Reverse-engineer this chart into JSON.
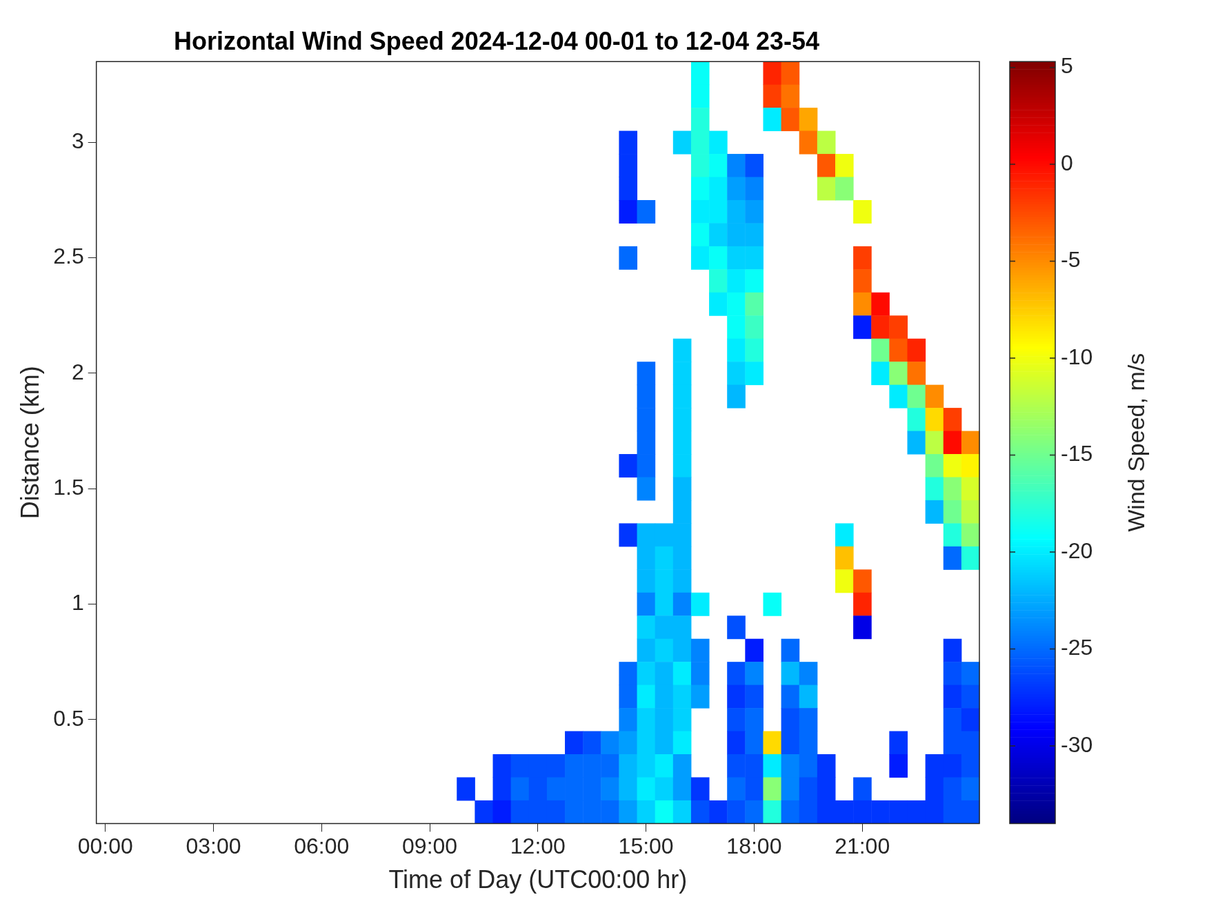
{
  "chart_data": {
    "type": "heatmap",
    "title": "Horizontal Wind Speed 2024-12-04 00-01 to 12-04 23-54",
    "xlabel": "Time of Day (UTC00:00 hr)",
    "ylabel": "Distance (km)",
    "clabel": "Wind Speed, m/s",
    "categories": [
      "00:00",
      null,
      null,
      null,
      null,
      null,
      "03:00",
      null,
      null,
      null,
      null,
      null,
      "06:00",
      null,
      null,
      null,
      null,
      null,
      "09:00",
      null,
      null,
      null,
      null,
      null,
      "12:00",
      null,
      null,
      null,
      null,
      null,
      "15:00",
      null,
      null,
      null,
      null,
      null,
      "18:00",
      null,
      null,
      null,
      null,
      null,
      "21:00",
      null,
      null,
      null,
      null,
      null,
      null
    ],
    "y_categories": [
      null,
      null,
      null,
      "3",
      null,
      null,
      null,
      null,
      "2.5",
      null,
      null,
      null,
      null,
      "2",
      null,
      null,
      null,
      null,
      "1.5",
      null,
      null,
      null,
      null,
      "1",
      null,
      null,
      null,
      null,
      "0.5",
      null,
      null,
      null,
      null
    ],
    "clim": [
      -34,
      5.3
    ],
    "cticks": [
      -30,
      -25,
      -20,
      -15,
      -10,
      -5,
      0,
      5
    ],
    "cells": [
      [
        null,
        null,
        null,
        null,
        null,
        null,
        null,
        null,
        null,
        null,
        null,
        null,
        null,
        null,
        null,
        null,
        null,
        null,
        null,
        null,
        null,
        null,
        null,
        null,
        null,
        null,
        null,
        null,
        null,
        null,
        null,
        null,
        null,
        -19,
        null,
        null,
        null,
        -1,
        -3,
        null,
        null,
        null,
        null,
        null,
        null,
        null,
        null,
        null,
        null
      ],
      [
        null,
        null,
        null,
        null,
        null,
        null,
        null,
        null,
        null,
        null,
        null,
        null,
        null,
        null,
        null,
        null,
        null,
        null,
        null,
        null,
        null,
        null,
        null,
        null,
        null,
        null,
        null,
        null,
        null,
        null,
        null,
        null,
        null,
        -19,
        null,
        null,
        null,
        -2,
        -4,
        null,
        null,
        null,
        null,
        null,
        null,
        null,
        null,
        null,
        null
      ],
      [
        null,
        null,
        null,
        null,
        null,
        null,
        null,
        null,
        null,
        null,
        null,
        null,
        null,
        null,
        null,
        null,
        null,
        null,
        null,
        null,
        null,
        null,
        null,
        null,
        null,
        null,
        null,
        null,
        null,
        null,
        null,
        null,
        null,
        -18,
        null,
        null,
        null,
        -20,
        -3,
        -6,
        null,
        null,
        null,
        null,
        null,
        null,
        null,
        null,
        null
      ],
      [
        null,
        null,
        null,
        null,
        null,
        null,
        null,
        null,
        null,
        null,
        null,
        null,
        null,
        null,
        null,
        null,
        null,
        null,
        null,
        null,
        null,
        null,
        null,
        null,
        null,
        null,
        null,
        null,
        null,
        -27,
        null,
        null,
        -21,
        -18,
        -20,
        null,
        null,
        null,
        null,
        -4,
        -12,
        null,
        null,
        null,
        null,
        null,
        null,
        null,
        null
      ],
      [
        null,
        null,
        null,
        null,
        null,
        null,
        null,
        null,
        null,
        null,
        null,
        null,
        null,
        null,
        null,
        null,
        null,
        null,
        null,
        null,
        null,
        null,
        null,
        null,
        null,
        null,
        null,
        null,
        null,
        -27,
        null,
        null,
        null,
        -18,
        -19,
        -24,
        -26,
        null,
        null,
        null,
        -3,
        -10,
        null,
        null,
        null,
        null,
        null,
        null,
        null
      ],
      [
        null,
        null,
        null,
        null,
        null,
        null,
        null,
        null,
        null,
        null,
        null,
        null,
        null,
        null,
        null,
        null,
        null,
        null,
        null,
        null,
        null,
        null,
        null,
        null,
        null,
        null,
        null,
        null,
        null,
        -27,
        null,
        null,
        null,
        -19,
        -20,
        -23,
        -24,
        null,
        null,
        null,
        -12,
        -14,
        null,
        null,
        null,
        null,
        null,
        null,
        null
      ],
      [
        null,
        null,
        null,
        null,
        null,
        null,
        null,
        null,
        null,
        null,
        null,
        null,
        null,
        null,
        null,
        null,
        null,
        null,
        null,
        null,
        null,
        null,
        null,
        null,
        null,
        null,
        null,
        null,
        null,
        -28,
        -25,
        null,
        null,
        -20,
        -20,
        -22,
        -23,
        null,
        null,
        null,
        null,
        null,
        -10,
        null,
        null,
        null,
        null,
        null,
        null
      ],
      [
        null,
        null,
        null,
        null,
        null,
        null,
        null,
        null,
        null,
        null,
        null,
        null,
        null,
        null,
        null,
        null,
        null,
        null,
        null,
        null,
        null,
        null,
        null,
        null,
        null,
        null,
        null,
        null,
        null,
        null,
        null,
        null,
        null,
        -19,
        -21,
        -22,
        -22,
        null,
        null,
        null,
        null,
        null,
        null,
        null,
        null,
        null,
        null,
        null,
        null
      ],
      [
        null,
        null,
        null,
        null,
        null,
        null,
        null,
        null,
        null,
        null,
        null,
        null,
        null,
        null,
        null,
        null,
        null,
        null,
        null,
        null,
        null,
        null,
        null,
        null,
        null,
        null,
        null,
        null,
        null,
        -25,
        null,
        null,
        null,
        -20,
        -19,
        -21,
        -21,
        null,
        null,
        null,
        null,
        null,
        -2,
        null,
        null,
        null,
        null,
        null,
        null
      ],
      [
        null,
        null,
        null,
        null,
        null,
        null,
        null,
        null,
        null,
        null,
        null,
        null,
        null,
        null,
        null,
        null,
        null,
        null,
        null,
        null,
        null,
        null,
        null,
        null,
        null,
        null,
        null,
        null,
        null,
        null,
        null,
        null,
        null,
        null,
        -18,
        -20,
        -19,
        null,
        null,
        null,
        null,
        null,
        -3,
        null,
        null,
        null,
        null,
        null,
        null
      ],
      [
        null,
        null,
        null,
        null,
        null,
        null,
        null,
        null,
        null,
        null,
        null,
        null,
        null,
        null,
        null,
        null,
        null,
        null,
        null,
        null,
        null,
        null,
        null,
        null,
        null,
        null,
        null,
        null,
        null,
        null,
        null,
        null,
        null,
        null,
        -20,
        -19,
        -16,
        null,
        null,
        null,
        null,
        null,
        -5,
        0,
        null,
        null,
        null,
        null,
        null
      ],
      [
        null,
        null,
        null,
        null,
        null,
        null,
        null,
        null,
        null,
        null,
        null,
        null,
        null,
        null,
        null,
        null,
        null,
        null,
        null,
        null,
        null,
        null,
        null,
        null,
        null,
        null,
        null,
        null,
        null,
        null,
        null,
        null,
        null,
        null,
        null,
        -19,
        -17,
        null,
        null,
        null,
        null,
        null,
        -28,
        -1,
        -2,
        null,
        null,
        null,
        null
      ],
      [
        null,
        null,
        null,
        null,
        null,
        null,
        null,
        null,
        null,
        null,
        null,
        null,
        null,
        null,
        null,
        null,
        null,
        null,
        null,
        null,
        null,
        null,
        null,
        null,
        null,
        null,
        null,
        null,
        null,
        null,
        null,
        null,
        -21,
        null,
        null,
        -20,
        -18,
        null,
        null,
        null,
        null,
        null,
        null,
        -15,
        -3,
        -1,
        null,
        null,
        null
      ],
      [
        null,
        null,
        null,
        null,
        null,
        null,
        null,
        null,
        null,
        null,
        null,
        null,
        null,
        null,
        null,
        null,
        null,
        null,
        null,
        null,
        null,
        null,
        null,
        null,
        null,
        null,
        null,
        null,
        null,
        null,
        -25,
        null,
        -21,
        null,
        null,
        -21,
        -20,
        null,
        null,
        null,
        null,
        null,
        null,
        -20,
        -14,
        -4,
        null,
        null,
        null
      ],
      [
        null,
        null,
        null,
        null,
        null,
        null,
        null,
        null,
        null,
        null,
        null,
        null,
        null,
        null,
        null,
        null,
        null,
        null,
        null,
        null,
        null,
        null,
        null,
        null,
        null,
        null,
        null,
        null,
        null,
        null,
        -25,
        null,
        -21,
        null,
        null,
        -22,
        null,
        null,
        null,
        null,
        null,
        null,
        null,
        null,
        -20,
        -15,
        -5,
        null,
        null
      ],
      [
        null,
        null,
        null,
        null,
        null,
        null,
        null,
        null,
        null,
        null,
        null,
        null,
        null,
        null,
        null,
        null,
        null,
        null,
        null,
        null,
        null,
        null,
        null,
        null,
        null,
        null,
        null,
        null,
        null,
        null,
        -25,
        null,
        -21,
        null,
        null,
        null,
        null,
        null,
        null,
        null,
        null,
        null,
        null,
        null,
        null,
        -18,
        -8,
        -2,
        null
      ],
      [
        null,
        null,
        null,
        null,
        null,
        null,
        null,
        null,
        null,
        null,
        null,
        null,
        null,
        null,
        null,
        null,
        null,
        null,
        null,
        null,
        null,
        null,
        null,
        null,
        null,
        null,
        null,
        null,
        null,
        null,
        -25,
        null,
        -21,
        null,
        null,
        null,
        null,
        null,
        null,
        null,
        null,
        null,
        null,
        null,
        null,
        -22,
        -12,
        0,
        -5
      ],
      [
        null,
        null,
        null,
        null,
        null,
        null,
        null,
        null,
        null,
        null,
        null,
        null,
        null,
        null,
        null,
        null,
        null,
        null,
        null,
        null,
        null,
        null,
        null,
        null,
        null,
        null,
        null,
        null,
        null,
        -27,
        -25,
        null,
        -21,
        null,
        null,
        null,
        null,
        null,
        null,
        null,
        null,
        null,
        null,
        null,
        null,
        null,
        -15,
        -10,
        -9
      ],
      [
        null,
        null,
        null,
        null,
        null,
        null,
        null,
        null,
        null,
        null,
        null,
        null,
        null,
        null,
        null,
        null,
        null,
        null,
        null,
        null,
        null,
        null,
        null,
        null,
        null,
        null,
        null,
        null,
        null,
        null,
        -24,
        null,
        -22,
        null,
        null,
        null,
        null,
        null,
        null,
        null,
        null,
        null,
        null,
        null,
        null,
        null,
        -18,
        -14,
        -11
      ],
      [
        null,
        null,
        null,
        null,
        null,
        null,
        null,
        null,
        null,
        null,
        null,
        null,
        null,
        null,
        null,
        null,
        null,
        null,
        null,
        null,
        null,
        null,
        null,
        null,
        null,
        null,
        null,
        null,
        null,
        null,
        null,
        null,
        -22,
        null,
        null,
        null,
        null,
        null,
        null,
        null,
        null,
        null,
        null,
        null,
        null,
        null,
        -22,
        -15,
        -12
      ],
      [
        null,
        null,
        null,
        null,
        null,
        null,
        null,
        null,
        null,
        null,
        null,
        null,
        null,
        null,
        null,
        null,
        null,
        null,
        null,
        null,
        null,
        null,
        null,
        null,
        null,
        null,
        null,
        null,
        null,
        -27,
        -22,
        -22,
        -22,
        null,
        null,
        null,
        null,
        null,
        null,
        null,
        null,
        -20,
        null,
        null,
        null,
        null,
        null,
        -18,
        -14
      ],
      [
        null,
        null,
        null,
        null,
        null,
        null,
        null,
        null,
        null,
        null,
        null,
        null,
        null,
        null,
        null,
        null,
        null,
        null,
        null,
        null,
        null,
        null,
        null,
        null,
        null,
        null,
        null,
        null,
        null,
        null,
        -22,
        -21,
        -22,
        null,
        null,
        null,
        null,
        null,
        null,
        null,
        null,
        -7,
        null,
        null,
        null,
        null,
        null,
        -25,
        -18
      ],
      [
        null,
        null,
        null,
        null,
        null,
        null,
        null,
        null,
        null,
        null,
        null,
        null,
        null,
        null,
        null,
        null,
        null,
        null,
        null,
        null,
        null,
        null,
        null,
        null,
        null,
        null,
        null,
        null,
        null,
        null,
        -22,
        -21,
        -22,
        null,
        null,
        null,
        null,
        null,
        null,
        null,
        null,
        -10,
        -3,
        null,
        null,
        null,
        null,
        null,
        null
      ],
      [
        null,
        null,
        null,
        null,
        null,
        null,
        null,
        null,
        null,
        null,
        null,
        null,
        null,
        null,
        null,
        null,
        null,
        null,
        null,
        null,
        null,
        null,
        null,
        null,
        null,
        null,
        null,
        null,
        null,
        null,
        -24,
        -21,
        -24,
        -20,
        null,
        null,
        null,
        -19,
        null,
        null,
        null,
        null,
        -1,
        null,
        null,
        null,
        null,
        null,
        null
      ],
      [
        null,
        null,
        null,
        null,
        null,
        null,
        null,
        null,
        null,
        null,
        null,
        null,
        null,
        null,
        null,
        null,
        null,
        null,
        null,
        null,
        null,
        null,
        null,
        null,
        null,
        null,
        null,
        null,
        null,
        null,
        -21,
        -22,
        -22,
        null,
        null,
        -26,
        null,
        null,
        null,
        null,
        null,
        null,
        -30,
        null,
        null,
        null,
        null,
        null,
        null
      ],
      [
        null,
        null,
        null,
        null,
        null,
        null,
        null,
        null,
        null,
        null,
        null,
        null,
        null,
        null,
        null,
        null,
        null,
        null,
        null,
        null,
        null,
        null,
        null,
        null,
        null,
        null,
        null,
        null,
        null,
        null,
        -22,
        -21,
        -22,
        -24,
        null,
        null,
        -28,
        null,
        -25,
        null,
        null,
        null,
        null,
        null,
        null,
        null,
        null,
        -27,
        null
      ],
      [
        null,
        null,
        null,
        null,
        null,
        null,
        null,
        null,
        null,
        null,
        null,
        null,
        null,
        null,
        null,
        null,
        null,
        null,
        null,
        null,
        null,
        null,
        null,
        null,
        null,
        null,
        null,
        null,
        null,
        -25,
        -21,
        -22,
        -20,
        -24,
        null,
        -26,
        -24,
        null,
        -22,
        -24,
        null,
        null,
        null,
        null,
        null,
        null,
        null,
        -26,
        -25
      ],
      [
        null,
        null,
        null,
        null,
        null,
        null,
        null,
        null,
        null,
        null,
        null,
        null,
        null,
        null,
        null,
        null,
        null,
        null,
        null,
        null,
        null,
        null,
        null,
        null,
        null,
        null,
        null,
        null,
        null,
        -25,
        -20,
        -22,
        -21,
        -23,
        null,
        -27,
        -26,
        null,
        -25,
        -22,
        null,
        null,
        null,
        null,
        null,
        null,
        null,
        -27,
        -26
      ],
      [
        null,
        null,
        null,
        null,
        null,
        null,
        null,
        null,
        null,
        null,
        null,
        null,
        null,
        null,
        null,
        null,
        null,
        null,
        null,
        null,
        null,
        null,
        null,
        null,
        null,
        null,
        null,
        null,
        null,
        -24,
        -21,
        -22,
        -21,
        null,
        null,
        -26,
        -25,
        null,
        -26,
        -25,
        null,
        null,
        null,
        null,
        null,
        null,
        null,
        -26,
        -27
      ],
      [
        null,
        null,
        null,
        null,
        null,
        null,
        null,
        null,
        null,
        null,
        null,
        null,
        null,
        null,
        null,
        null,
        null,
        null,
        null,
        null,
        null,
        null,
        null,
        null,
        null,
        null,
        -27,
        -26,
        -24,
        -23,
        -21,
        -22,
        -20,
        null,
        null,
        -27,
        -25,
        -8,
        -26,
        -25,
        null,
        null,
        null,
        null,
        -27,
        null,
        null,
        -26,
        -26
      ],
      [
        null,
        null,
        null,
        null,
        null,
        null,
        null,
        null,
        null,
        null,
        null,
        null,
        null,
        null,
        null,
        null,
        null,
        null,
        null,
        null,
        null,
        null,
        -27,
        -26,
        -26,
        -26,
        -25,
        -25,
        -25,
        -22,
        -21,
        -20,
        -23,
        null,
        null,
        -26,
        -26,
        -20,
        -24,
        -25,
        -27,
        null,
        null,
        null,
        -28,
        null,
        -27,
        -27,
        -26
      ],
      [
        null,
        null,
        null,
        null,
        null,
        null,
        null,
        null,
        null,
        null,
        null,
        null,
        null,
        null,
        null,
        null,
        null,
        null,
        null,
        null,
        -27,
        null,
        -27,
        -25,
        -26,
        -25,
        -25,
        -25,
        -24,
        -22,
        -20,
        -21,
        -23,
        -27,
        null,
        -25,
        -26,
        -14,
        -24,
        -26,
        -27,
        null,
        -26,
        null,
        null,
        null,
        -27,
        -26,
        -25
      ],
      [
        null,
        null,
        null,
        null,
        null,
        null,
        null,
        null,
        null,
        null,
        null,
        null,
        null,
        null,
        null,
        null,
        null,
        null,
        null,
        null,
        null,
        -27,
        -28,
        -26,
        -26,
        -26,
        -25,
        -25,
        -25,
        -23,
        -21,
        -19,
        -21,
        -26,
        -27,
        -26,
        -25,
        -18,
        -25,
        -26,
        -27,
        -27,
        -27,
        -27,
        -27,
        -27,
        -27,
        -26,
        -26
      ]
    ]
  }
}
